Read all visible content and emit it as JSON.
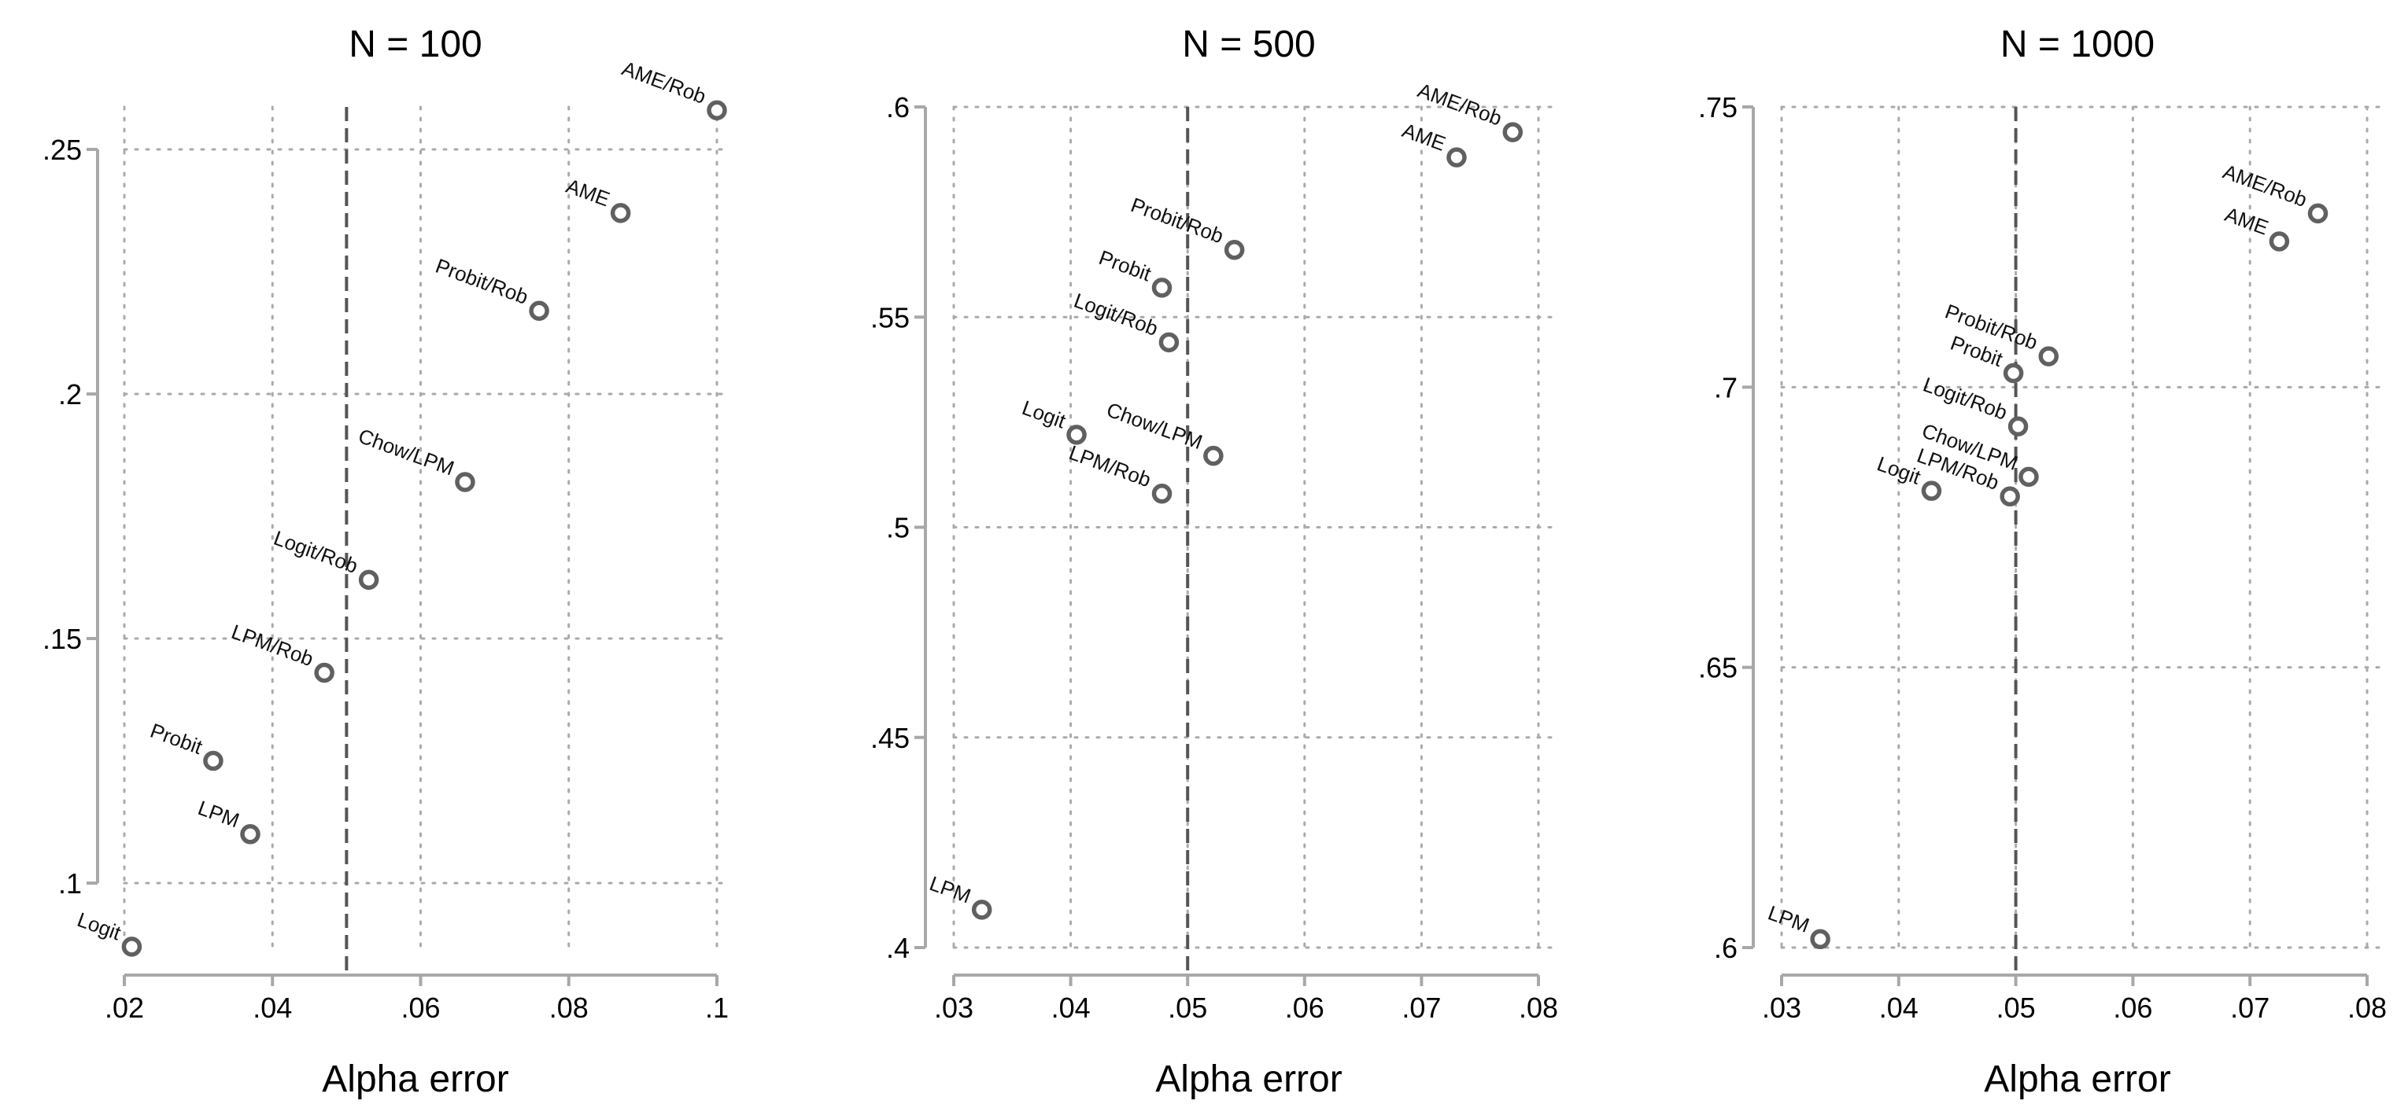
{
  "chart_data": [
    {
      "type": "scatter",
      "title": "N = 100",
      "xlabel": "Alpha error",
      "ylabel": "",
      "xlim": [
        0.02,
        0.1
      ],
      "ylim": [
        0.087,
        0.258
      ],
      "x_ticks": [
        0.02,
        0.04,
        0.06,
        0.08,
        0.1
      ],
      "x_tick_labels": [
        ".02",
        ".04",
        ".06",
        ".08",
        ".1"
      ],
      "y_ticks": [
        0.1,
        0.15,
        0.2,
        0.25
      ],
      "y_tick_labels": [
        ".1",
        ".15",
        ".2",
        ".25"
      ],
      "reference_x": 0.05,
      "grid": true,
      "points": [
        {
          "label": "AME/Rob",
          "x": 0.1,
          "y": 0.258
        },
        {
          "label": "AME",
          "x": 0.087,
          "y": 0.237
        },
        {
          "label": "Probit/Rob",
          "x": 0.076,
          "y": 0.217
        },
        {
          "label": "Chow/LPM",
          "x": 0.066,
          "y": 0.182
        },
        {
          "label": "Logit/Rob",
          "x": 0.053,
          "y": 0.162
        },
        {
          "label": "LPM/Rob",
          "x": 0.047,
          "y": 0.143
        },
        {
          "label": "Probit",
          "x": 0.032,
          "y": 0.125
        },
        {
          "label": "LPM",
          "x": 0.037,
          "y": 0.11
        },
        {
          "label": "Logit",
          "x": 0.021,
          "y": 0.087
        }
      ]
    },
    {
      "type": "scatter",
      "title": "N = 500",
      "xlabel": "Alpha error",
      "ylabel": "",
      "xlim": [
        0.03,
        0.08
      ],
      "ylim": [
        0.4,
        0.6
      ],
      "x_ticks": [
        0.03,
        0.04,
        0.05,
        0.06,
        0.07,
        0.08
      ],
      "x_tick_labels": [
        ".03",
        ".04",
        ".05",
        ".06",
        ".07",
        ".08"
      ],
      "y_ticks": [
        0.4,
        0.45,
        0.5,
        0.55,
        0.6
      ],
      "y_tick_labels": [
        ".4",
        ".45",
        ".5",
        ".55",
        ".6"
      ],
      "reference_x": 0.05,
      "grid": true,
      "points": [
        {
          "label": "AME/Rob",
          "x": 0.0778,
          "y": 0.594
        },
        {
          "label": "AME",
          "x": 0.073,
          "y": 0.588
        },
        {
          "label": "Probit/Rob",
          "x": 0.054,
          "y": 0.566
        },
        {
          "label": "Probit",
          "x": 0.0478,
          "y": 0.557
        },
        {
          "label": "Logit/Rob",
          "x": 0.0484,
          "y": 0.544
        },
        {
          "label": "Chow/LPM",
          "x": 0.0522,
          "y": 0.517
        },
        {
          "label": "Logit",
          "x": 0.0405,
          "y": 0.522
        },
        {
          "label": "LPM/Rob",
          "x": 0.0478,
          "y": 0.508
        },
        {
          "label": "LPM",
          "x": 0.0324,
          "y": 0.409
        }
      ]
    },
    {
      "type": "scatter",
      "title": "N = 1000",
      "xlabel": "Alpha error",
      "ylabel": "",
      "xlim": [
        0.03,
        0.08
      ],
      "ylim": [
        0.6,
        0.75
      ],
      "x_ticks": [
        0.03,
        0.04,
        0.05,
        0.06,
        0.07,
        0.08
      ],
      "x_tick_labels": [
        ".03",
        ".04",
        ".05",
        ".06",
        ".07",
        ".08"
      ],
      "y_ticks": [
        0.6,
        0.65,
        0.7,
        0.75
      ],
      "y_tick_labels": [
        ".6",
        ".65",
        ".7",
        ".75"
      ],
      "reference_x": 0.05,
      "grid": true,
      "points": [
        {
          "label": "AME/Rob",
          "x": 0.0758,
          "y": 0.731
        },
        {
          "label": "AME",
          "x": 0.0725,
          "y": 0.726
        },
        {
          "label": "Probit/Rob",
          "x": 0.0528,
          "y": 0.7055
        },
        {
          "label": "Probit",
          "x": 0.0498,
          "y": 0.7025
        },
        {
          "label": "Logit/Rob",
          "x": 0.0502,
          "y": 0.693
        },
        {
          "label": "Chow/LPM",
          "x": 0.0511,
          "y": 0.684
        },
        {
          "label": "LPM/Rob",
          "x": 0.0495,
          "y": 0.6805
        },
        {
          "label": "Logit",
          "x": 0.0428,
          "y": 0.6815
        },
        {
          "label": "LPM",
          "x": 0.0333,
          "y": 0.6015
        }
      ]
    }
  ]
}
